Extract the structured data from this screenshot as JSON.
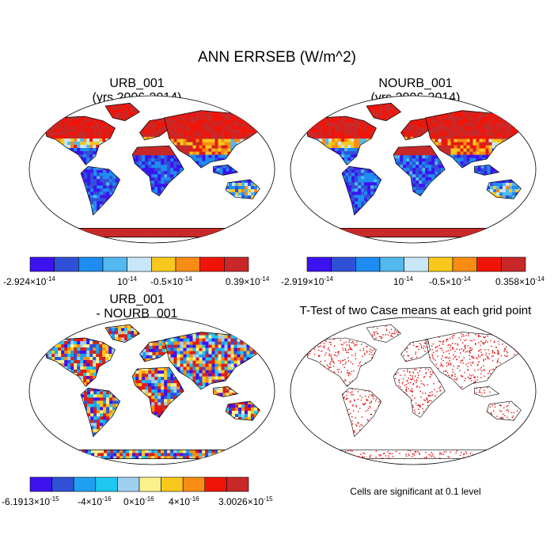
{
  "chart_data": {
    "type": "heatmap",
    "title": "ANN ERRSEB (W/m^2)",
    "panels": [
      {
        "id": "urb",
        "title_line1": "URB_001",
        "title_line2": "(yrs 2006-2014)",
        "colorbar": {
          "colors": [
            "#3d12f0",
            "#3050d8",
            "#1e8cf0",
            "#52b8ee",
            "#c8e6f8",
            "#f8c81c",
            "#f88c14",
            "#f01408",
            "#c82828"
          ],
          "tick_labels": [
            {
              "base": "-2.924",
              "exp": "-14"
            },
            {
              "base": "",
              "exp": "-14"
            },
            {
              "base": "-0.5",
              "exp": "-14"
            },
            {
              "base": "0.39",
              "exp": "-14"
            }
          ]
        }
      },
      {
        "id": "nourb",
        "title_line1": "NOURB_001",
        "title_line2": "(yrs 2006-2014)",
        "colorbar": {
          "colors": [
            "#3d12f0",
            "#3050d8",
            "#1e8cf0",
            "#52b8ee",
            "#c8e6f8",
            "#f8c81c",
            "#f88c14",
            "#f01408",
            "#c82828"
          ],
          "tick_labels": [
            {
              "base": "-2.919",
              "exp": "-14"
            },
            {
              "base": "",
              "exp": "-14"
            },
            {
              "base": "-0.5",
              "exp": "-14"
            },
            {
              "base": "0.358",
              "exp": "-14"
            }
          ]
        }
      },
      {
        "id": "diff",
        "title_line1": "URB_001",
        "title_line2": "- NOURB_001",
        "colorbar": {
          "colors": [
            "#3d12f0",
            "#3050d8",
            "#1ea0f0",
            "#1ec8f0",
            "#a0d0f0",
            "#fcf08c",
            "#f8c81c",
            "#f88c14",
            "#f01408",
            "#c82828"
          ],
          "tick_labels": [
            {
              "base": "-6.1913",
              "exp": "-15"
            },
            {
              "base": "-4",
              "exp": "-16"
            },
            {
              "base": "0",
              "exp": "-16"
            },
            {
              "base": "4",
              "exp": "-16"
            },
            {
              "base": "3.0026",
              "exp": "-15"
            }
          ]
        }
      },
      {
        "id": "ttest",
        "title_line1": "T-Test of two Case means at each grid point",
        "note": "Cells are significant at 0.1 level"
      }
    ]
  }
}
